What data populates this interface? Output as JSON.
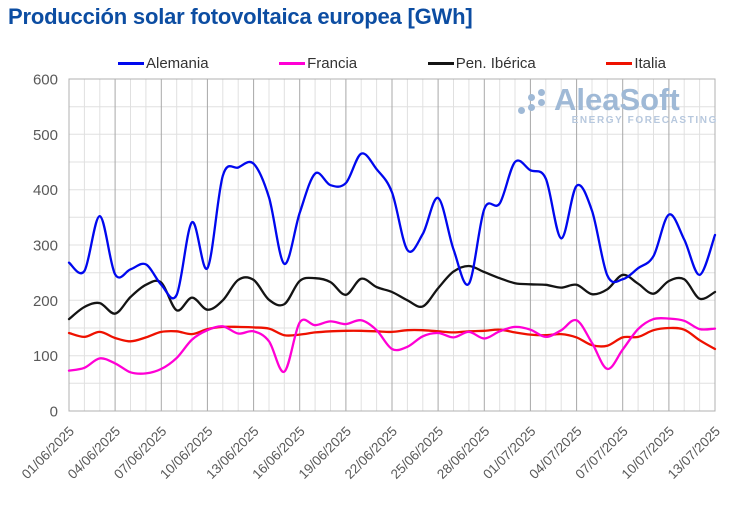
{
  "title": "Producción solar fotovoltaica europea [GWh]",
  "watermark": {
    "name": "AleaSoft",
    "tagline": "ENERGY FORECASTING"
  },
  "colors": {
    "title": "#0c4da2",
    "axis_text": "#595959",
    "grid_minor": "#e0e0e0",
    "grid_major": "#a8a8a8",
    "plot_border": "#b0b0b0",
    "watermark": "#9fb9d6"
  },
  "chart_data": {
    "type": "line",
    "title": "Producción solar fotovoltaica europea [GWh]",
    "xlabel": "",
    "ylabel": "",
    "ylim": [
      0,
      600
    ],
    "y_ticks": [
      0,
      100,
      200,
      300,
      400,
      500,
      600
    ],
    "y_gridline_interval": 50,
    "x_gridline_interval_days": 1,
    "x_major_gridline_interval_days": 3,
    "grid": true,
    "legend_position": "top",
    "x_tick_labels": [
      "01/06/2025",
      "04/06/2025",
      "07/06/2025",
      "10/06/2025",
      "13/06/2025",
      "16/06/2025",
      "19/06/2025",
      "22/06/2025",
      "25/06/2025",
      "28/06/2025",
      "01/07/2025",
      "04/07/2025",
      "07/07/2025",
      "10/07/2025",
      "13/07/2025"
    ],
    "categories": [
      "01/06/2025",
      "02/06/2025",
      "03/06/2025",
      "04/06/2025",
      "05/06/2025",
      "06/06/2025",
      "07/06/2025",
      "08/06/2025",
      "09/06/2025",
      "10/06/2025",
      "11/06/2025",
      "12/06/2025",
      "13/06/2025",
      "14/06/2025",
      "15/06/2025",
      "16/06/2025",
      "17/06/2025",
      "18/06/2025",
      "19/06/2025",
      "20/06/2025",
      "21/06/2025",
      "22/06/2025",
      "23/06/2025",
      "24/06/2025",
      "25/06/2025",
      "26/06/2025",
      "27/06/2025",
      "28/06/2025",
      "29/06/2025",
      "30/06/2025",
      "01/07/2025",
      "02/07/2025",
      "03/07/2025",
      "04/07/2025",
      "05/07/2025",
      "06/07/2025",
      "07/07/2025",
      "08/07/2025",
      "09/07/2025",
      "10/07/2025",
      "11/07/2025",
      "12/07/2025",
      "13/07/2025"
    ],
    "series": [
      {
        "name": "Italia",
        "color": "#ee1100",
        "values": [
          141,
          134,
          143,
          132,
          126,
          133,
          143,
          144,
          139,
          148,
          152,
          152,
          151,
          149,
          137,
          138,
          142,
          144,
          145,
          145,
          144,
          143,
          146,
          146,
          144,
          142,
          144,
          145,
          147,
          142,
          138,
          137,
          139,
          133,
          119,
          118,
          133,
          134,
          146,
          150,
          147,
          128,
          112
        ]
      },
      {
        "name": "Francia",
        "color": "#ff00d5",
        "values": [
          73,
          78,
          95,
          86,
          70,
          68,
          76,
          96,
          129,
          146,
          153,
          140,
          144,
          126,
          71,
          160,
          155,
          162,
          157,
          164,
          146,
          112,
          116,
          135,
          141,
          133,
          143,
          131,
          144,
          152,
          147,
          134,
          146,
          164,
          123,
          76,
          111,
          148,
          166,
          167,
          163,
          148,
          149
        ]
      },
      {
        "name": "Pen. Ibérica",
        "color": "#141414",
        "values": [
          166,
          188,
          195,
          176,
          206,
          228,
          232,
          182,
          205,
          183,
          200,
          237,
          237,
          201,
          193,
          235,
          240,
          233,
          210,
          239,
          224,
          215,
          200,
          189,
          222,
          252,
          262,
          251,
          240,
          231,
          229,
          228,
          223,
          228,
          211,
          220,
          246,
          230,
          212,
          235,
          238,
          203,
          215
        ]
      },
      {
        "name": "Alemania",
        "color": "#0008ee",
        "values": [
          268,
          253,
          352,
          247,
          256,
          265,
          228,
          210,
          341,
          258,
          425,
          440,
          447,
          386,
          266,
          358,
          429,
          408,
          412,
          465,
          437,
          395,
          291,
          320,
          385,
          292,
          230,
          365,
          375,
          450,
          435,
          420,
          312,
          407,
          362,
          245,
          238,
          258,
          280,
          355,
          310,
          246,
          318
        ]
      }
    ],
    "legend_order": [
      "Alemania",
      "Francia",
      "Pen. Ibérica",
      "Italia"
    ]
  }
}
